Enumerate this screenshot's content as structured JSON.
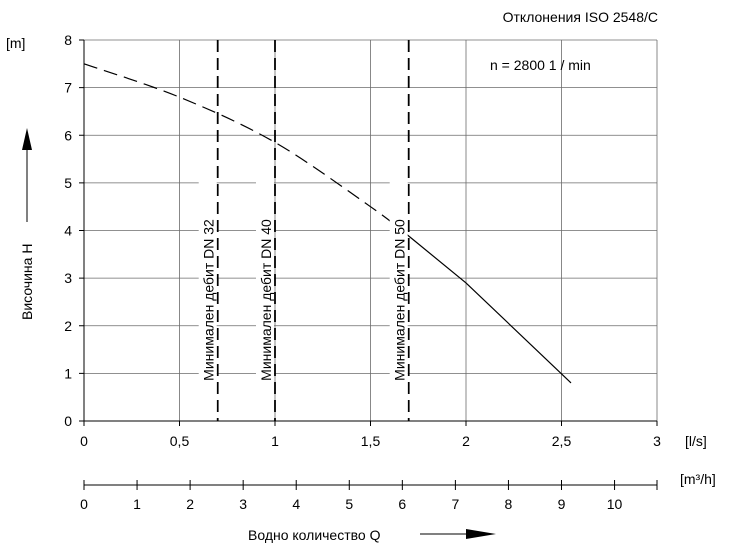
{
  "chart_data": {
    "type": "line",
    "title": "",
    "annotation_top_right": "Отклонения  ISO 2548/C",
    "speed_label": "n = 2800  1 / min",
    "ylabel": "Височина  H",
    "y_unit": "[m]",
    "xlabel": "Водно количество  Q",
    "x_unit_ls": "[l/s]",
    "x_unit_m3h": "[m³/h]",
    "ylim": [
      0,
      8
    ],
    "xlim_ls": [
      0,
      3
    ],
    "xlim_m3h": [
      0,
      10.8
    ],
    "y_ticks": [
      "0",
      "1",
      "2",
      "3",
      "4",
      "5",
      "6",
      "7",
      "8"
    ],
    "x_ticks_ls": [
      {
        "v": 0,
        "label": "0"
      },
      {
        "v": 0.5,
        "label": "0,5"
      },
      {
        "v": 1,
        "label": "1"
      },
      {
        "v": 1.5,
        "label": "1,5"
      },
      {
        "v": 2,
        "label": "2"
      },
      {
        "v": 2.5,
        "label": "2,5"
      },
      {
        "v": 3,
        "label": "3"
      }
    ],
    "x_ticks_m3h": [
      {
        "v": 0,
        "label": "0"
      },
      {
        "v": 1,
        "label": "1"
      },
      {
        "v": 2,
        "label": "2"
      },
      {
        "v": 3,
        "label": "3"
      },
      {
        "v": 4,
        "label": "4"
      },
      {
        "v": 5,
        "label": "5"
      },
      {
        "v": 6,
        "label": "6"
      },
      {
        "v": 7,
        "label": "7"
      },
      {
        "v": 8,
        "label": "8"
      },
      {
        "v": 9,
        "label": "9"
      },
      {
        "v": 10,
        "label": "10"
      }
    ],
    "grid": true,
    "series": [
      {
        "style": "dashed",
        "points": [
          [
            0,
            7.5
          ],
          [
            0.5,
            6.8
          ],
          [
            1.0,
            5.85
          ],
          [
            1.5,
            4.5
          ],
          [
            1.68,
            3.95
          ]
        ]
      },
      {
        "style": "solid",
        "points": [
          [
            1.68,
            3.95
          ],
          [
            2.0,
            2.9
          ],
          [
            2.55,
            0.8
          ]
        ]
      }
    ],
    "min_flow_lines": [
      {
        "x": 0.7,
        "label": "Минимален дебит DN 32"
      },
      {
        "x": 1.0,
        "label": "Минимален дебит DN 40"
      },
      {
        "x": 1.7,
        "label": "Минимален дебит DN 50"
      }
    ]
  }
}
